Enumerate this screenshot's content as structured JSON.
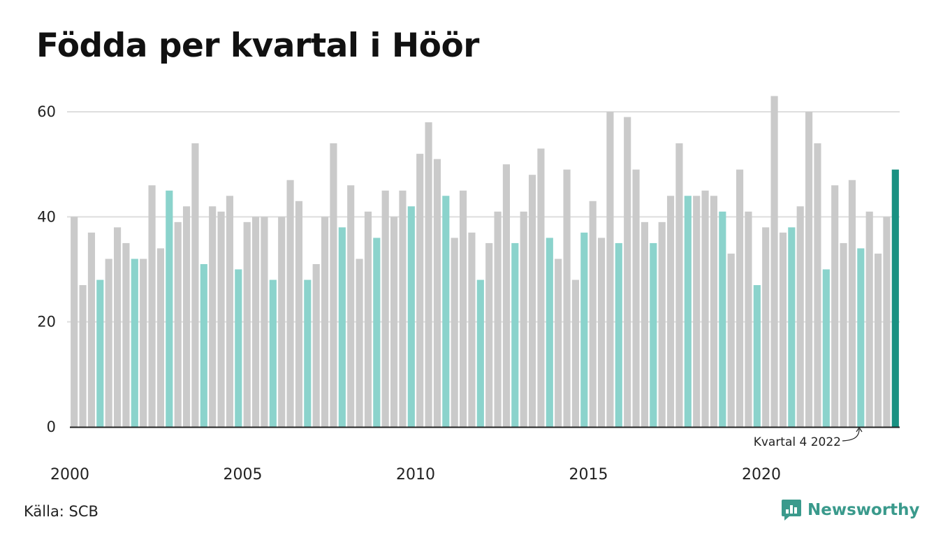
{
  "chart_data": {
    "type": "bar",
    "title": "Födda per kvartal i Höör",
    "x_start_year": 2000,
    "x_tick_labels": [
      "2000",
      "2005",
      "2010",
      "2015",
      "2020"
    ],
    "y_ticks": [
      0,
      20,
      40,
      60
    ],
    "ylim": [
      0,
      65
    ],
    "grid": true,
    "values": [
      40,
      27,
      37,
      28,
      32,
      38,
      35,
      32,
      32,
      46,
      34,
      45,
      39,
      42,
      54,
      31,
      42,
      41,
      44,
      30,
      39,
      40,
      40,
      28,
      40,
      47,
      43,
      28,
      31,
      40,
      54,
      38,
      46,
      32,
      41,
      36,
      45,
      40,
      45,
      42,
      52,
      58,
      51,
      44,
      36,
      45,
      37,
      28,
      35,
      41,
      50,
      35,
      41,
      48,
      53,
      36,
      32,
      49,
      28,
      37,
      43,
      36,
      60,
      35,
      59,
      49,
      39,
      35,
      39,
      44,
      54,
      44,
      44,
      45,
      44,
      41,
      33,
      49,
      41,
      27,
      38,
      63,
      37,
      38,
      42,
      60,
      54,
      30,
      46,
      35,
      47,
      34,
      41,
      33,
      40,
      49
    ],
    "highlight_quarter": 4,
    "annotation": "Kvartal 4 2022",
    "colors": {
      "default": "#cacaca",
      "highlight": "#8bd3cc",
      "latest": "#1a9182"
    }
  },
  "source": "Källa: SCB",
  "brand": {
    "name": "Newsworthy",
    "icon": "newsworthy-logo-icon",
    "color": "#3a9a8c"
  }
}
